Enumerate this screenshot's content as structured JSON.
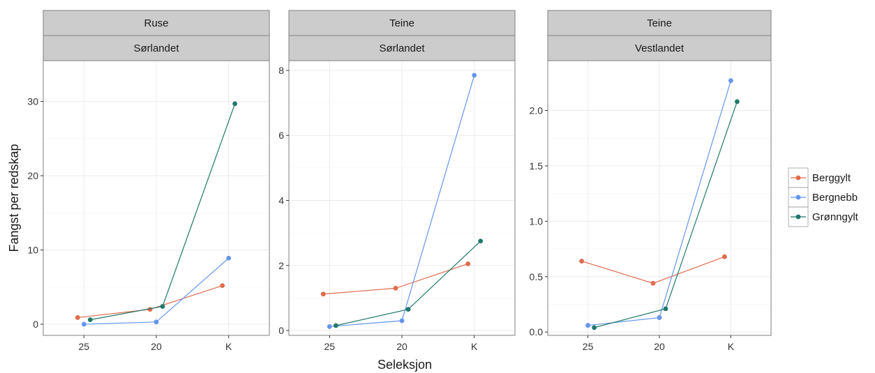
{
  "colors": {
    "Berggylt": "#e06b4d",
    "Bergnebb": "#6495ed",
    "Grønngylt": "#20786b",
    "strip_fill": "#cccccc",
    "border": "#7f7f7f",
    "grid": "#ebebeb"
  },
  "chart_data": {
    "type": "line",
    "xlabel": "Seleksjon",
    "ylabel": "Fangst per redskap",
    "categories": [
      "25",
      "20",
      "K"
    ],
    "grid": true,
    "legend_position": "right",
    "legend": [
      "Berggylt",
      "Bergnebb",
      "Grønngylt"
    ],
    "panels": [
      {
        "strip_top": "Ruse",
        "strip_bottom": "Sørlandet",
        "ylim": [
          -1.5,
          35.5
        ],
        "yticks": [
          0,
          10,
          20,
          30
        ],
        "series": [
          {
            "name": "Berggylt",
            "values": [
              0.9,
              2.0,
              5.2
            ]
          },
          {
            "name": "Bergnebb",
            "values": [
              0.0,
              0.3,
              8.9
            ]
          },
          {
            "name": "Grønngylt",
            "values": [
              0.6,
              2.4,
              29.7
            ]
          }
        ]
      },
      {
        "strip_top": "Teine",
        "strip_bottom": "Sørlandet",
        "ylim": [
          -0.15,
          8.3
        ],
        "yticks": [
          0,
          2,
          4,
          6,
          8
        ],
        "series": [
          {
            "name": "Berggylt",
            "values": [
              1.12,
              1.3,
              2.05
            ]
          },
          {
            "name": "Bergnebb",
            "values": [
              0.12,
              0.3,
              7.85
            ]
          },
          {
            "name": "Grønngylt",
            "values": [
              0.15,
              0.65,
              2.75
            ]
          }
        ]
      },
      {
        "strip_top": "Teine",
        "strip_bottom": "Vestlandet",
        "ylim": [
          -0.03,
          2.45
        ],
        "yticks": [
          0.0,
          0.5,
          1.0,
          1.5,
          2.0
        ],
        "ytick_labels": [
          "0.0",
          "0.5",
          "1.0",
          "1.5",
          "2.0"
        ],
        "series": [
          {
            "name": "Berggylt",
            "values": [
              0.64,
              0.44,
              0.68
            ]
          },
          {
            "name": "Bergnebb",
            "values": [
              0.06,
              0.13,
              2.27
            ]
          },
          {
            "name": "Grønngylt",
            "values": [
              0.04,
              0.21,
              2.08
            ]
          }
        ]
      }
    ]
  }
}
